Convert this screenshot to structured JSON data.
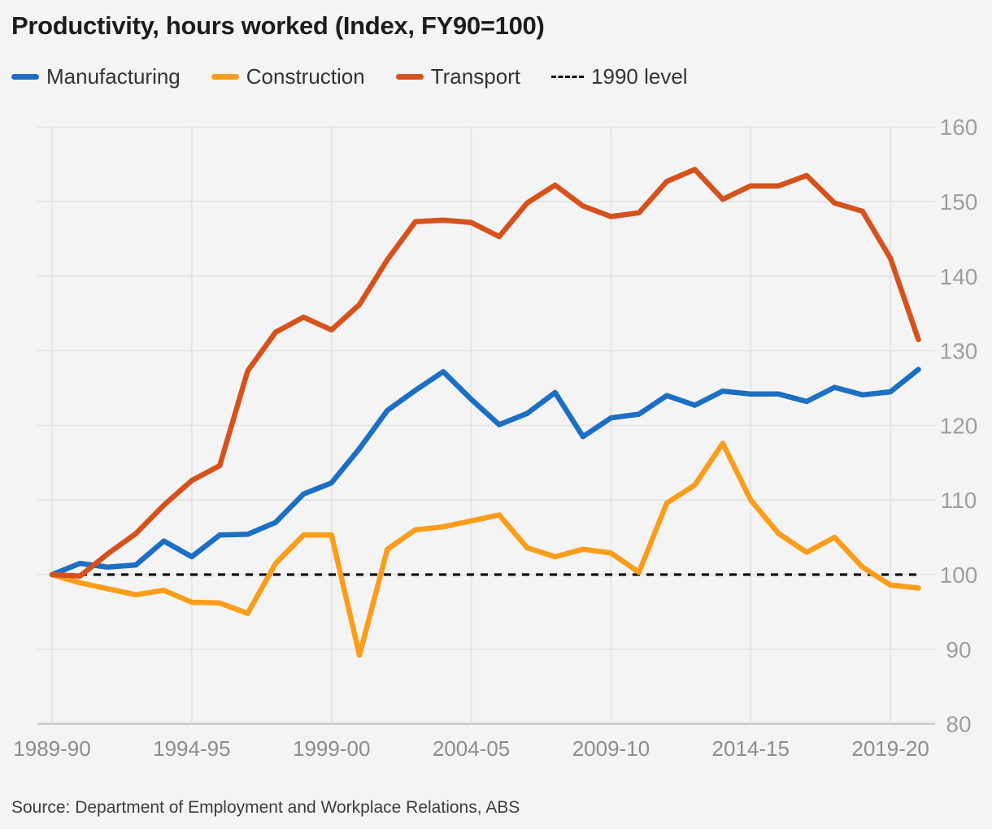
{
  "title": "Productivity, hours worked (Index, FY90=100)",
  "source": "Source: Department of Employment and Workplace Relations, ABS",
  "legend": [
    {
      "label": "Manufacturing",
      "color": "#1d6fc4",
      "swatch": "line"
    },
    {
      "label": "Construction",
      "color": "#fa9d1a",
      "swatch": "line"
    },
    {
      "label": "Transport",
      "color": "#d6521c",
      "swatch": "line"
    },
    {
      "label": "1990 level",
      "color": "#111111",
      "swatch": "dashed"
    }
  ],
  "colors": {
    "background": "#f4f4f4",
    "grid": "#e2e2e2",
    "baseline_axis": "#c9c9c9",
    "y_tick_label": "#9e9e9e",
    "x_tick_label": "#8d8d8d",
    "reference_line": "#111111",
    "manufacturing": "#1d6fc4",
    "construction": "#fa9d1a",
    "transport": "#d6521c"
  },
  "chart_data": {
    "type": "line",
    "title": "Productivity, hours worked (Index, FY90=100)",
    "x": [
      "1989-90",
      "1990-91",
      "1991-92",
      "1992-93",
      "1993-94",
      "1994-95",
      "1995-96",
      "1996-97",
      "1997-98",
      "1998-99",
      "1999-00",
      "2000-01",
      "2001-02",
      "2002-03",
      "2003-04",
      "2004-05",
      "2005-06",
      "2006-07",
      "2007-08",
      "2008-09",
      "2009-10",
      "2010-11",
      "2011-12",
      "2012-13",
      "2013-14",
      "2014-15",
      "2015-16",
      "2016-17",
      "2017-18",
      "2018-19",
      "2019-20",
      "2020-21"
    ],
    "x_ticks": [
      "1989-90",
      "1994-95",
      "1999-00",
      "2004-05",
      "2009-10",
      "2014-15",
      "2019-20"
    ],
    "x_tick_indices": [
      0,
      5,
      10,
      15,
      20,
      25,
      30
    ],
    "series": [
      {
        "name": "Manufacturing",
        "color": "#1d6fc4",
        "values": [
          100,
          101.5,
          101,
          101.3,
          104.5,
          102.4,
          105.3,
          105.4,
          107,
          110.8,
          112.3,
          116.9,
          122,
          124.7,
          127.2,
          123.5,
          120.1,
          121.6,
          124.4,
          118.5,
          121,
          121.5,
          124,
          122.7,
          124.6,
          124.2,
          124.2,
          123.2,
          125.1,
          124.1,
          124.5,
          127.5
        ]
      },
      {
        "name": "Construction",
        "color": "#fa9d1a",
        "values": [
          100,
          98.9,
          98.1,
          97.3,
          97.9,
          96.3,
          96.2,
          94.8,
          101.5,
          105.3,
          105.3,
          89.2,
          103.4,
          106,
          106.4,
          107.2,
          108,
          103.6,
          102.4,
          103.4,
          102.9,
          100.3,
          109.6,
          112,
          117.6,
          110,
          105.5,
          103,
          105,
          101,
          98.6,
          98.2
        ]
      },
      {
        "name": "Transport",
        "color": "#d6521c",
        "values": [
          100,
          99.8,
          102.8,
          105.5,
          109.3,
          112.6,
          114.6,
          127.3,
          132.5,
          134.5,
          132.8,
          136.2,
          142.2,
          147.3,
          147.5,
          147.2,
          145.3,
          149.8,
          152.2,
          149.4,
          148,
          148.5,
          152.7,
          154.3,
          150.3,
          152.1,
          152.1,
          153.5,
          149.8,
          148.7,
          142.4,
          131.5
        ]
      }
    ],
    "reference_line": {
      "label": "1990 level",
      "value": 100,
      "style": "dashed",
      "color": "#111111"
    },
    "ylim": [
      80,
      160
    ],
    "y_ticks": [
      80,
      90,
      100,
      110,
      120,
      130,
      140,
      150,
      160
    ],
    "y_axis_side": "right",
    "grid": true,
    "legend_position": "top-left"
  }
}
